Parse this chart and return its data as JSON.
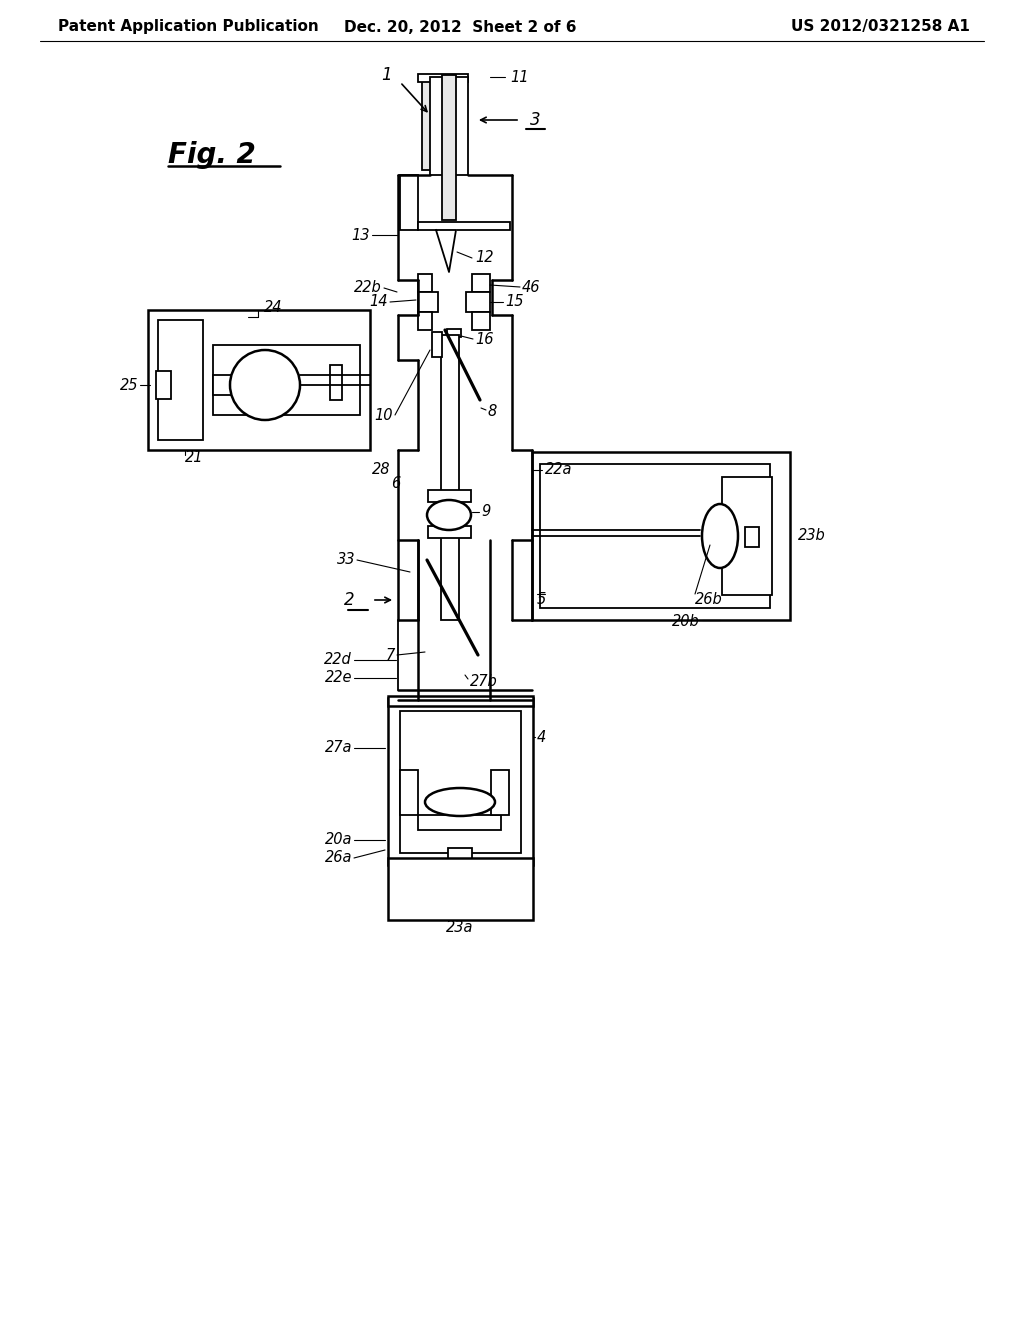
{
  "header_left": "Patent Application Publication",
  "header_center": "Dec. 20, 2012  Sheet 2 of 6",
  "header_right": "US 2012/0321258 A1",
  "figure_label": "Fig. 2",
  "bg_color": "#ffffff",
  "line_color": "#000000",
  "header_fontsize": 11,
  "fig_label_fontsize": 20,
  "label_fontsize": 10.5
}
